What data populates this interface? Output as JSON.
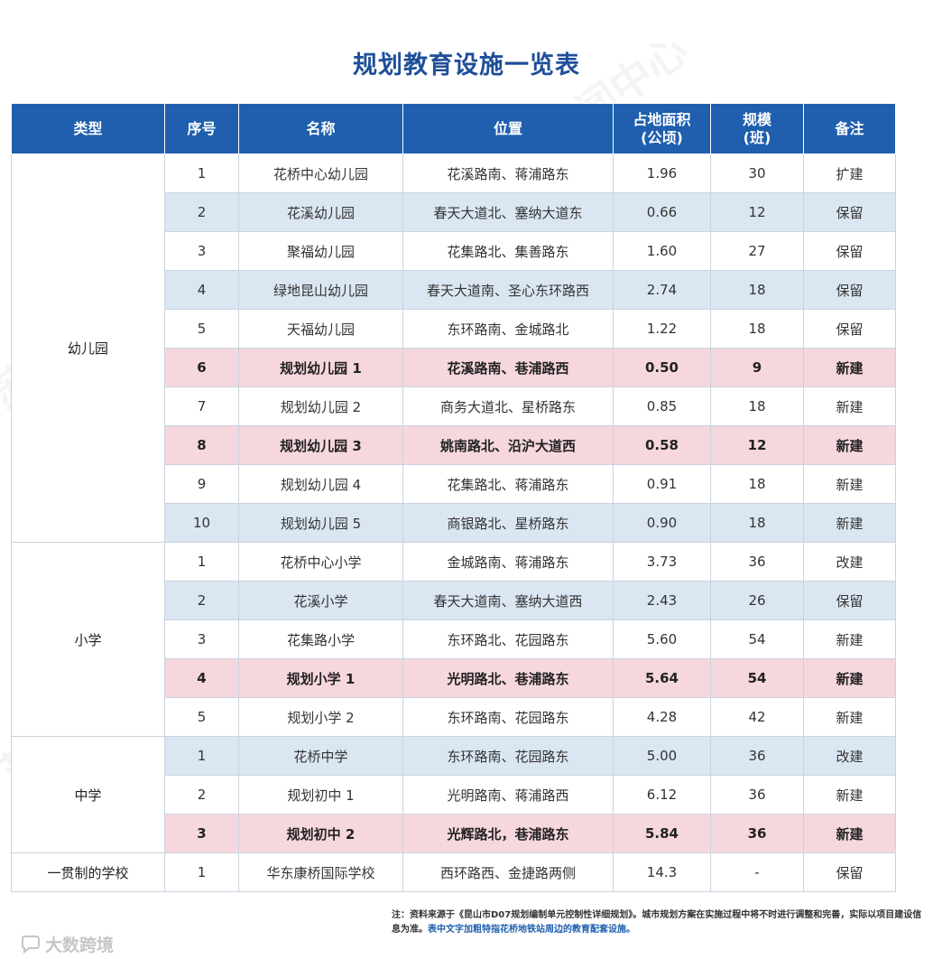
{
  "title": "规划教育设施一览表",
  "headers": {
    "type": "类型",
    "seq": "序号",
    "name": "名称",
    "location": "位置",
    "area_line1": "占地面积",
    "area_line2": "(公顷)",
    "scale_line1": "规模",
    "scale_line2": "(班)",
    "note": "备注"
  },
  "groups": [
    {
      "type": "幼儿园",
      "rows": [
        {
          "seq": "1",
          "name": "花桥中心幼儿园",
          "location": "花溪路南、蒋浦路东",
          "area": "1.96",
          "scale": "30",
          "note": "扩建",
          "style": "white"
        },
        {
          "seq": "2",
          "name": "花溪幼儿园",
          "location": "春天大道北、塞纳大道东",
          "area": "0.66",
          "scale": "12",
          "note": "保留",
          "style": "blue"
        },
        {
          "seq": "3",
          "name": "聚福幼儿园",
          "location": "花集路北、集善路东",
          "area": "1.60",
          "scale": "27",
          "note": "保留",
          "style": "white"
        },
        {
          "seq": "4",
          "name": "绿地昆山幼儿园",
          "location": "春天大道南、圣心东环路西",
          "area": "2.74",
          "scale": "18",
          "note": "保留",
          "style": "blue"
        },
        {
          "seq": "5",
          "name": "天福幼儿园",
          "location": "东环路南、金城路北",
          "area": "1.22",
          "scale": "18",
          "note": "保留",
          "style": "white"
        },
        {
          "seq": "6",
          "name": "规划幼儿园 1",
          "location": "花溪路南、巷浦路西",
          "area": "0.50",
          "scale": "9",
          "note": "新建",
          "style": "pink"
        },
        {
          "seq": "7",
          "name": "规划幼儿园 2",
          "location": "商务大道北、星桥路东",
          "area": "0.85",
          "scale": "18",
          "note": "新建",
          "style": "white"
        },
        {
          "seq": "8",
          "name": "规划幼儿园 3",
          "location": "姚南路北、沿沪大道西",
          "area": "0.58",
          "scale": "12",
          "note": "新建",
          "style": "pink"
        },
        {
          "seq": "9",
          "name": "规划幼儿园 4",
          "location": "花集路北、蒋浦路东",
          "area": "0.91",
          "scale": "18",
          "note": "新建",
          "style": "white"
        },
        {
          "seq": "10",
          "name": "规划幼儿园 5",
          "location": "商银路北、星桥路东",
          "area": "0.90",
          "scale": "18",
          "note": "新建",
          "style": "blue"
        }
      ]
    },
    {
      "type": "小学",
      "rows": [
        {
          "seq": "1",
          "name": "花桥中心小学",
          "location": "金城路南、蒋浦路东",
          "area": "3.73",
          "scale": "36",
          "note": "改建",
          "style": "white"
        },
        {
          "seq": "2",
          "name": "花溪小学",
          "location": "春天大道南、塞纳大道西",
          "area": "2.43",
          "scale": "26",
          "note": "保留",
          "style": "blue"
        },
        {
          "seq": "3",
          "name": "花集路小学",
          "location": "东环路北、花园路东",
          "area": "5.60",
          "scale": "54",
          "note": "新建",
          "style": "white"
        },
        {
          "seq": "4",
          "name": "规划小学 1",
          "location": "光明路北、巷浦路东",
          "area": "5.64",
          "scale": "54",
          "note": "新建",
          "style": "pink"
        },
        {
          "seq": "5",
          "name": "规划小学 2",
          "location": "东环路南、花园路东",
          "area": "4.28",
          "scale": "42",
          "note": "新建",
          "style": "white"
        }
      ]
    },
    {
      "type": "中学",
      "rows": [
        {
          "seq": "1",
          "name": "花桥中学",
          "location": "东环路南、花园路东",
          "area": "5.00",
          "scale": "36",
          "note": "改建",
          "style": "blue"
        },
        {
          "seq": "2",
          "name": "规划初中 1",
          "location": "光明路南、蒋浦路西",
          "area": "6.12",
          "scale": "36",
          "note": "新建",
          "style": "white"
        },
        {
          "seq": "3",
          "name": "规划初中 2",
          "location": "光辉路北，巷浦路东",
          "area": "5.84",
          "scale": "36",
          "note": "新建",
          "style": "pink"
        }
      ]
    },
    {
      "type": "一贯制的学校",
      "rows": [
        {
          "seq": "1",
          "name": "华东康桥国际学校",
          "location": "西环路西、金捷路两侧",
          "area": "14.3",
          "scale": "-",
          "note": "保留",
          "style": "white"
        }
      ]
    }
  ],
  "footnote": {
    "text": "注：资料来源于《昆山市D07规划编制单元控制性详细规划》。城市规划方案在实施过程中将不时进行调整和完善，实际以项目建设信息为准。",
    "highlight": "表中文字加粗特指花桥地铁站周边的教育配套设施。"
  },
  "brand": "大数跨境",
  "watermark": "苏州规划新闻中心"
}
